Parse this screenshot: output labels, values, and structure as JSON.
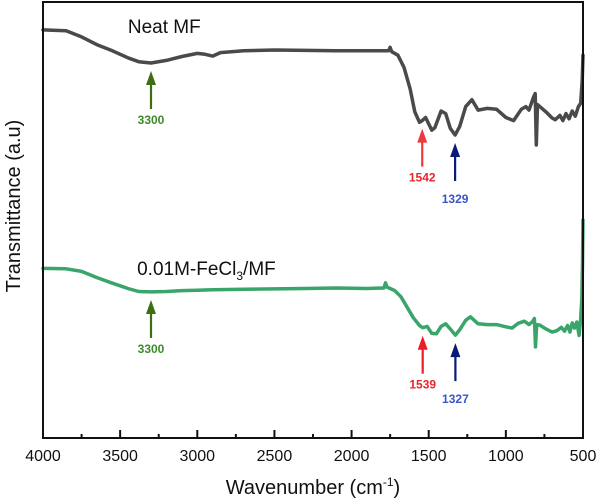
{
  "chart_data": {
    "type": "line",
    "title": "",
    "xlabel": "Wavenumber (cm",
    "xlabel_sup": "-1",
    "xlabel_end": ")",
    "ylabel": "Transmittance (a.u)",
    "xlim": [
      4000,
      500
    ],
    "ylim": [
      0,
      100
    ],
    "x_reversed": true,
    "grid": false,
    "x_ticks": [
      4000,
      3500,
      3000,
      2500,
      2000,
      1500,
      1000,
      500
    ],
    "x_tick_labels": [
      "4000",
      "3500",
      "3000",
      "2500",
      "2000",
      "1500",
      "1000",
      "500"
    ],
    "x_minor_ticks": [
      3750,
      3250,
      2750,
      2250,
      1750,
      1250,
      750
    ],
    "series": [
      {
        "name": "Neat MF",
        "label_main": "Neat MF",
        "label_sub": "",
        "label_end": "",
        "color": "#4a4a4a",
        "points": [
          [
            4000,
            93.6
          ],
          [
            3850,
            93.4
          ],
          [
            3750,
            92.0
          ],
          [
            3650,
            90.2
          ],
          [
            3550,
            88.8
          ],
          [
            3450,
            87.2
          ],
          [
            3380,
            86.3
          ],
          [
            3300,
            86.0
          ],
          [
            3200,
            86.6
          ],
          [
            3100,
            87.5
          ],
          [
            3000,
            88.2
          ],
          [
            2950,
            88.0
          ],
          [
            2900,
            87.6
          ],
          [
            2850,
            88.4
          ],
          [
            2700,
            88.8
          ],
          [
            2500,
            89.0
          ],
          [
            2300,
            88.9
          ],
          [
            2100,
            88.8
          ],
          [
            1900,
            88.8
          ],
          [
            1760,
            88.8
          ],
          [
            1750,
            89.6
          ],
          [
            1740,
            88.6
          ],
          [
            1700,
            87.8
          ],
          [
            1660,
            85.0
          ],
          [
            1620,
            80.0
          ],
          [
            1590,
            74.8
          ],
          [
            1560,
            72.4
          ],
          [
            1542,
            72.8
          ],
          [
            1520,
            73.5
          ],
          [
            1480,
            70.6
          ],
          [
            1460,
            71.2
          ],
          [
            1420,
            75.0
          ],
          [
            1390,
            74.4
          ],
          [
            1360,
            71.0
          ],
          [
            1329,
            69.5
          ],
          [
            1300,
            71.4
          ],
          [
            1260,
            76.0
          ],
          [
            1220,
            77.6
          ],
          [
            1180,
            75.2
          ],
          [
            1120,
            75.6
          ],
          [
            1060,
            75.4
          ],
          [
            1000,
            73.5
          ],
          [
            950,
            72.8
          ],
          [
            900,
            75.4
          ],
          [
            870,
            76.0
          ],
          [
            850,
            75.2
          ],
          [
            820,
            78.2
          ],
          [
            810,
            79.0
          ],
          [
            803,
            67.2
          ],
          [
            795,
            76.5
          ],
          [
            780,
            76.0
          ],
          [
            740,
            74.8
          ],
          [
            700,
            73.4
          ],
          [
            680,
            73.0
          ],
          [
            650,
            74.0
          ],
          [
            630,
            72.8
          ],
          [
            610,
            74.4
          ],
          [
            590,
            73.2
          ],
          [
            570,
            75.0
          ],
          [
            550,
            73.8
          ],
          [
            530,
            76.0
          ],
          [
            515,
            76.8
          ],
          [
            505,
            82.0
          ],
          [
            500,
            87.8
          ]
        ]
      },
      {
        "name": "0.01M-FeCl3/MF",
        "label_main": "0.01M-FeCl",
        "label_sub": "3",
        "label_end": "/MF",
        "color": "#3aa56a",
        "points": [
          [
            4000,
            38.9
          ],
          [
            3850,
            38.8
          ],
          [
            3750,
            38.2
          ],
          [
            3650,
            36.8
          ],
          [
            3550,
            35.5
          ],
          [
            3450,
            34.3
          ],
          [
            3380,
            33.6
          ],
          [
            3300,
            33.5
          ],
          [
            3200,
            33.6
          ],
          [
            3100,
            33.8
          ],
          [
            3000,
            33.9
          ],
          [
            2900,
            34.0
          ],
          [
            2700,
            34.1
          ],
          [
            2500,
            34.2
          ],
          [
            2300,
            34.3
          ],
          [
            2100,
            34.4
          ],
          [
            1900,
            34.3
          ],
          [
            1790,
            34.4
          ],
          [
            1780,
            35.6
          ],
          [
            1770,
            34.6
          ],
          [
            1720,
            33.8
          ],
          [
            1680,
            32.4
          ],
          [
            1640,
            30.0
          ],
          [
            1600,
            27.6
          ],
          [
            1560,
            25.8
          ],
          [
            1539,
            25.3
          ],
          [
            1510,
            25.6
          ],
          [
            1480,
            24.0
          ],
          [
            1450,
            23.9
          ],
          [
            1420,
            25.6
          ],
          [
            1390,
            26.2
          ],
          [
            1360,
            25.0
          ],
          [
            1327,
            23.6
          ],
          [
            1300,
            24.8
          ],
          [
            1260,
            27.0
          ],
          [
            1230,
            27.8
          ],
          [
            1180,
            26.2
          ],
          [
            1120,
            26.0
          ],
          [
            1060,
            26.0
          ],
          [
            1000,
            25.5
          ],
          [
            960,
            25.2
          ],
          [
            920,
            26.3
          ],
          [
            880,
            26.8
          ],
          [
            850,
            26.0
          ],
          [
            825,
            26.8
          ],
          [
            815,
            27.4
          ],
          [
            808,
            20.9
          ],
          [
            800,
            26.0
          ],
          [
            780,
            25.9
          ],
          [
            740,
            25.0
          ],
          [
            700,
            24.3
          ],
          [
            670,
            24.6
          ],
          [
            640,
            25.4
          ],
          [
            620,
            24.5
          ],
          [
            600,
            25.8
          ],
          [
            585,
            24.3
          ],
          [
            570,
            26.4
          ],
          [
            555,
            25.2
          ],
          [
            540,
            26.6
          ],
          [
            525,
            23.5
          ],
          [
            515,
            27.5
          ],
          [
            508,
            32.0
          ],
          [
            503,
            40.0
          ],
          [
            500,
            50.0
          ]
        ]
      }
    ],
    "annotations": [
      {
        "series": "Neat MF",
        "wavenumber": 3300,
        "label": "3300",
        "color": "#3f6e12"
      },
      {
        "series": "Neat MF",
        "wavenumber": 1542,
        "label": "1542",
        "color": "#f0393e"
      },
      {
        "series": "Neat MF",
        "wavenumber": 1329,
        "label": "1329",
        "color": "#0a1a78"
      },
      {
        "series": "0.01M-FeCl3/MF",
        "wavenumber": 3300,
        "label": "3300",
        "color": "#3f6e12"
      },
      {
        "series": "0.01M-FeCl3/MF",
        "wavenumber": 1539,
        "label": "1539",
        "color": "#ee1c25"
      },
      {
        "series": "0.01M-FeCl3/MF",
        "wavenumber": 1327,
        "label": "1327",
        "color": "#0a1a78"
      }
    ],
    "annotation_label_colors": {
      "3300": "#3d8a2e",
      "1542": "#e8262d",
      "1329": "#3a55c9",
      "1539": "#e8262d",
      "1327": "#3a55c9"
    }
  }
}
